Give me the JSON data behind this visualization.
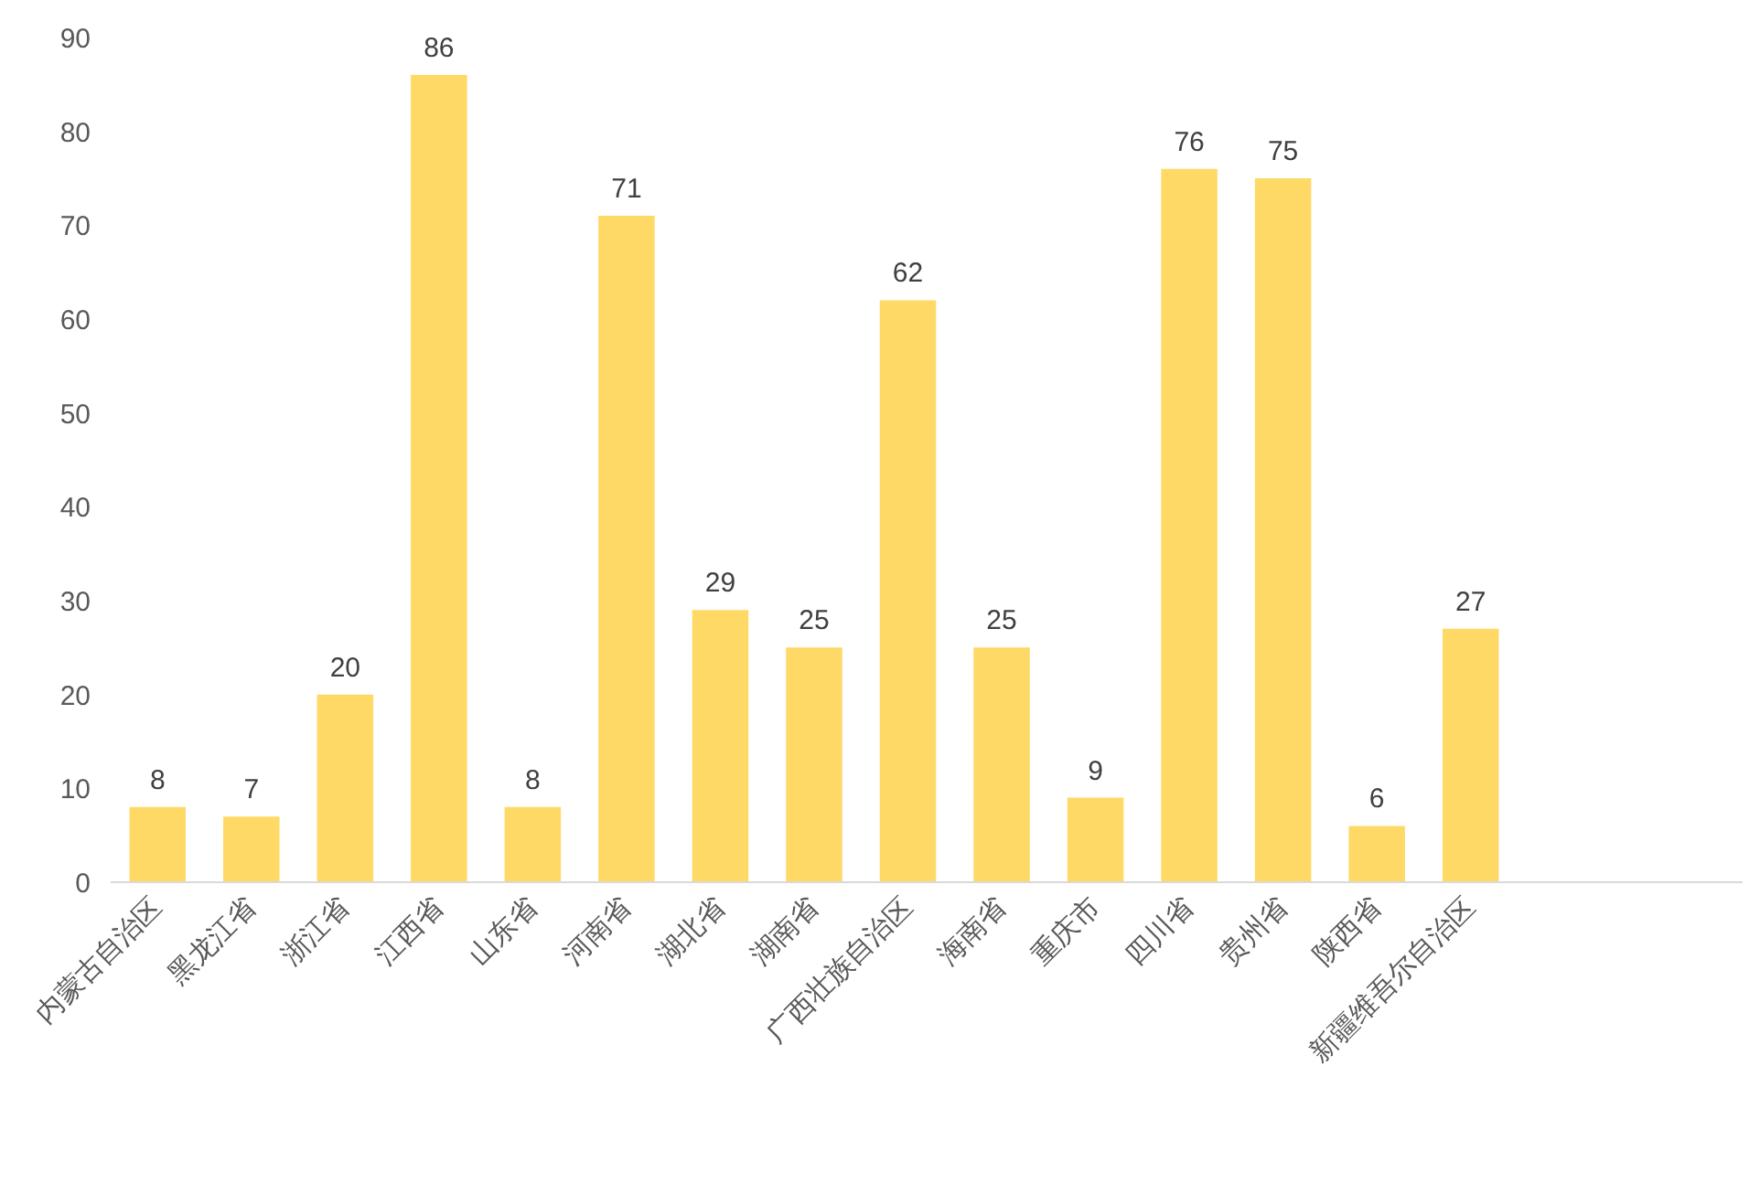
{
  "chart_data": {
    "type": "bar",
    "categories": [
      "内蒙古自治区",
      "黑龙江省",
      "浙江省",
      "江西省",
      "山东省",
      "河南省",
      "湖北省",
      "湖南省",
      "广西壮族自治区",
      "海南省",
      "重庆市",
      "四川省",
      "贵州省",
      "陕西省",
      "新疆维吾尔自治区"
    ],
    "values": [
      8,
      7,
      20,
      86,
      8,
      71,
      29,
      25,
      62,
      25,
      9,
      76,
      75,
      6,
      27
    ],
    "color": "#ffd966",
    "ylim": [
      0,
      90
    ],
    "yticks": [
      0,
      10,
      20,
      30,
      40,
      50,
      60,
      70,
      80,
      90
    ],
    "grid": false,
    "data_labels": true
  }
}
